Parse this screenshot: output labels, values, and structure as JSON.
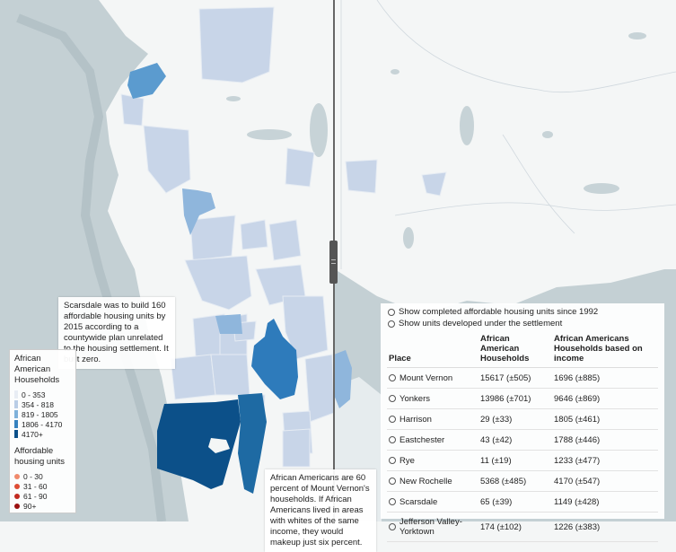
{
  "colors": {
    "water": "#c4d0d4",
    "land": "#f4f6f6",
    "tract_light": "#c8d5e8",
    "tract_mid": "#5b9bcf",
    "tract_dark": "#1e6aa3",
    "tract_darkest": "#0c5089"
  },
  "callouts": {
    "scarsdale": "Scarsdale was to build 160 affordable housing units by 2015 according to a countywide plan unrelated to the housing settlement. It built zero.",
    "mount_vernon": "African Americans are 60 percent of Mount Vernon's households. If African Americans lived in areas with whites of the same income, they would makeup just six percent."
  },
  "legend": {
    "title": "African American Households",
    "households": [
      {
        "label": "0 - 353",
        "color": "#e8edf4"
      },
      {
        "label": "354 - 818",
        "color": "#b9cde6"
      },
      {
        "label": "819 - 1805",
        "color": "#7fb1da"
      },
      {
        "label": "1806 - 4170",
        "color": "#3682bf"
      },
      {
        "label": "4170+",
        "color": "#0c5089"
      }
    ],
    "units_title": "Affordable housing units",
    "units": [
      {
        "label": "0 - 30",
        "color": "#f08a6c"
      },
      {
        "label": "31 - 60",
        "color": "#de4d35"
      },
      {
        "label": "61 - 90",
        "color": "#c22b21"
      },
      {
        "label": "90+",
        "color": "#9b1010"
      }
    ]
  },
  "options": {
    "completed": "Show completed affordable housing units since 1992",
    "settlement": "Show units developed under the settlement"
  },
  "table": {
    "headers": {
      "place": "Place",
      "aa_households": "African American Households",
      "aa_income": "African Americans Households based on income"
    },
    "rows": [
      {
        "place": "Mount Vernon",
        "households": "15617 (±505)",
        "income": "1696 (±885)"
      },
      {
        "place": "Yonkers",
        "households": "13986 (±701)",
        "income": "9646 (±869)"
      },
      {
        "place": "Harrison",
        "households": "29 (±33)",
        "income": "1805 (±461)"
      },
      {
        "place": "Eastchester",
        "households": "43 (±42)",
        "income": "1788 (±446)"
      },
      {
        "place": "Rye",
        "households": "11 (±19)",
        "income": "1233 (±477)"
      },
      {
        "place": "New Rochelle",
        "households": "5368 (±485)",
        "income": "4170 (±547)"
      },
      {
        "place": "Scarsdale",
        "households": "65 (±39)",
        "income": "1149 (±428)"
      },
      {
        "place": "Jefferson Valley-Yorktown",
        "households": "174 (±102)",
        "income": "1226 (±383)"
      }
    ]
  }
}
